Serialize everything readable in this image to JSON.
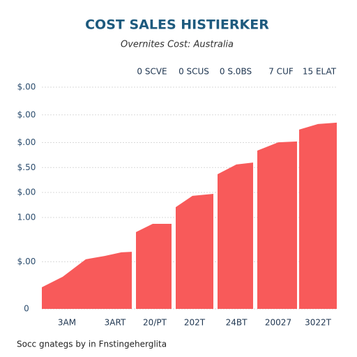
{
  "chart_data": {
    "type": "area",
    "title": "COST SALES HISTIERKER",
    "subtitle": "Overnites Cost: Australia",
    "annotations": [
      "0 SCVE",
      "0 SCUS",
      "0 S.0BS",
      "7 CUF",
      "15 ELAT"
    ],
    "source": "Socc gnategs by in Fnstingeherglita",
    "color": "#f85a5a",
    "grid": true,
    "xlim": [
      0,
      14.1
    ],
    "ylim": [
      0,
      8
    ],
    "yticks": [
      {
        "value": 8,
        "label": "$.00"
      },
      {
        "value": 7,
        "label": "$.00"
      },
      {
        "value": 6,
        "label": "$.00"
      },
      {
        "value": 5.1,
        "label": "$.50"
      },
      {
        "value": 4.2,
        "label": "$.00"
      },
      {
        "value": 3.3,
        "label": "1.00"
      },
      {
        "value": 1.7,
        "label": "$.00"
      },
      0
    ],
    "xticks": [
      {
        "value": 1.2,
        "label": "3AM"
      },
      {
        "value": 3.5,
        "label": "3ART"
      },
      {
        "value": 5.4,
        "label": "20/PT"
      },
      {
        "value": 7.3,
        "label": "202T"
      },
      {
        "value": 9.3,
        "label": "24BT"
      },
      {
        "value": 11.3,
        "label": "20027"
      },
      {
        "value": 13.2,
        "label": "3022T"
      }
    ],
    "x": [
      0,
      1.0,
      2.1,
      3.0,
      3.8,
      4.3,
      4.4,
      4.5,
      5.3,
      6.2,
      6.3,
      6.4,
      7.2,
      8.2,
      8.3,
      8.4,
      9.3,
      10.1,
      10.2,
      10.3,
      11.3,
      12.2,
      12.25,
      12.3,
      13.2,
      14.1
    ],
    "values": [
      0.78,
      1.16,
      1.79,
      1.91,
      2.04,
      2.06,
      null,
      2.77,
      3.07,
      3.07,
      null,
      3.67,
      4.08,
      4.15,
      null,
      4.86,
      5.21,
      5.28,
      null,
      5.71,
      6.01,
      6.04,
      null,
      6.47,
      6.67,
      6.72
    ]
  }
}
